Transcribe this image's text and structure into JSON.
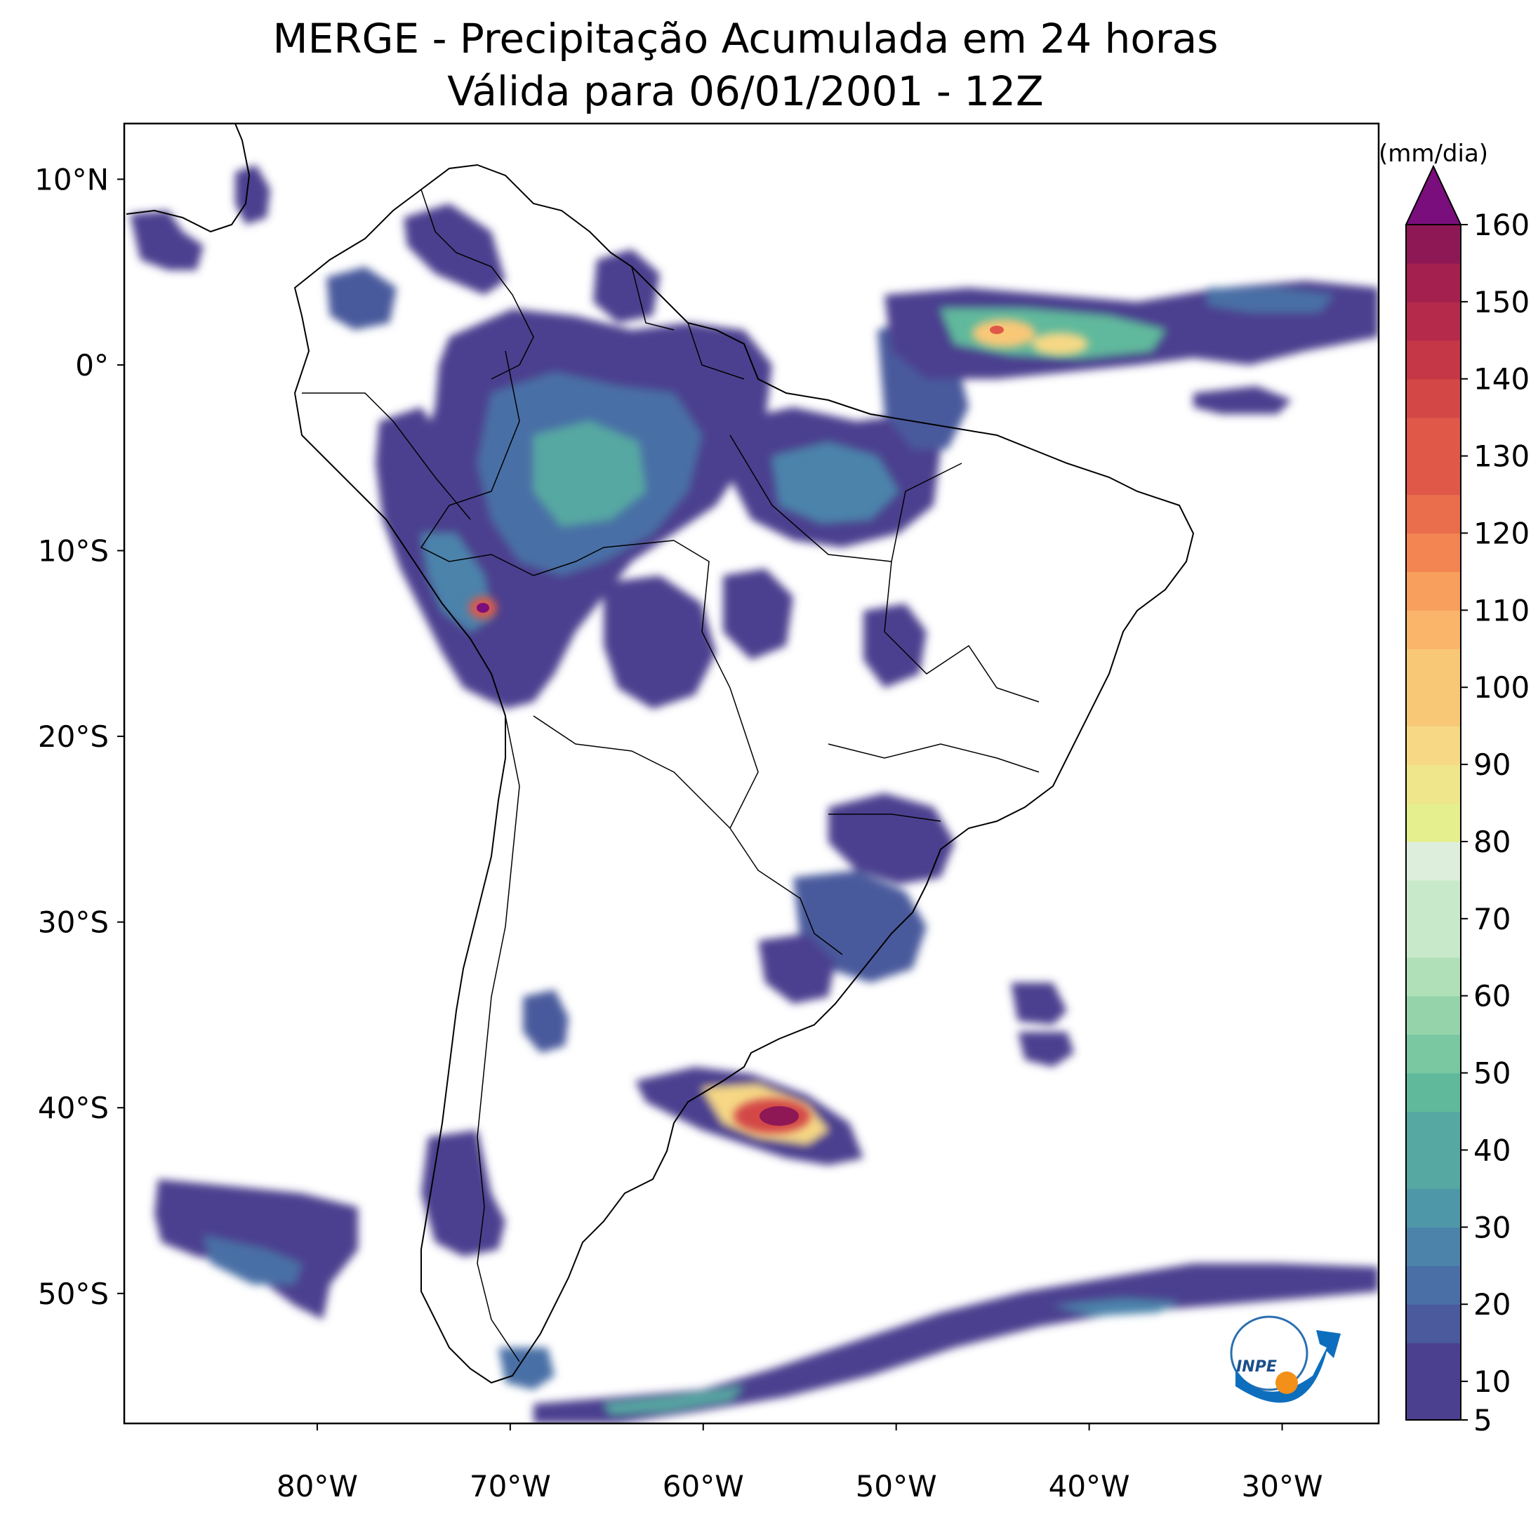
{
  "title": {
    "line1": "MERGE - Precipitação Acumulada em 24 horas",
    "line2": "Válida para 06/01/2001 - 12Z"
  },
  "colorbar": {
    "unit": "(mm/dia)",
    "min": 5,
    "max": 160,
    "extend": "max",
    "tick_labels": [
      "5",
      "10",
      "20",
      "30",
      "40",
      "50",
      "60",
      "70",
      "80",
      "90",
      "100",
      "110",
      "120",
      "130",
      "140",
      "150",
      "160"
    ],
    "tick_values": [
      5,
      10,
      20,
      30,
      40,
      50,
      60,
      70,
      80,
      90,
      100,
      110,
      120,
      130,
      140,
      150,
      160
    ],
    "levels": [
      5,
      10,
      15,
      20,
      25,
      30,
      35,
      40,
      45,
      50,
      55,
      60,
      65,
      70,
      75,
      80,
      85,
      90,
      95,
      100,
      105,
      110,
      115,
      120,
      125,
      130,
      135,
      140,
      145,
      150,
      155,
      160
    ],
    "colors": [
      "#4b3f8f",
      "#4a5a9c",
      "#4a6fa6",
      "#4b83ab",
      "#4e97a9",
      "#56a8a2",
      "#61b99c",
      "#79c8a2",
      "#95d4ab",
      "#b0e0b8",
      "#c9e9cb",
      "#ddeedd",
      "#e5ef8e",
      "#efe58a",
      "#f6d885",
      "#f9c877",
      "#fab56b",
      "#f89f5d",
      "#f38552",
      "#ea6d4c",
      "#df5848",
      "#d34747",
      "#c53747",
      "#b52a4a",
      "#a3204f",
      "#8e1855"
    ],
    "over_color": "#7b0e7d"
  },
  "map": {
    "projection": "PlateCarree",
    "lon_range": [
      -90,
      -25
    ],
    "lat_range": [
      -57,
      13
    ],
    "x_ticks": [
      {
        "value": -80,
        "label": "80°W"
      },
      {
        "value": -70,
        "label": "70°W"
      },
      {
        "value": -60,
        "label": "60°W"
      },
      {
        "value": -50,
        "label": "50°W"
      },
      {
        "value": -40,
        "label": "40°W"
      },
      {
        "value": -30,
        "label": "30°W"
      }
    ],
    "y_ticks": [
      {
        "value": 10,
        "label": "10°N"
      },
      {
        "value": 0,
        "label": "0°"
      },
      {
        "value": -10,
        "label": "10°S"
      },
      {
        "value": -20,
        "label": "20°S"
      },
      {
        "value": -30,
        "label": "30°S"
      },
      {
        "value": -40,
        "label": "40°S"
      },
      {
        "value": -50,
        "label": "50°S"
      }
    ],
    "logo": {
      "text": "INPE",
      "ring_color": "#2a6fb0",
      "arrow_color": "#0d6ebd",
      "dot_color": "#f39019"
    }
  }
}
